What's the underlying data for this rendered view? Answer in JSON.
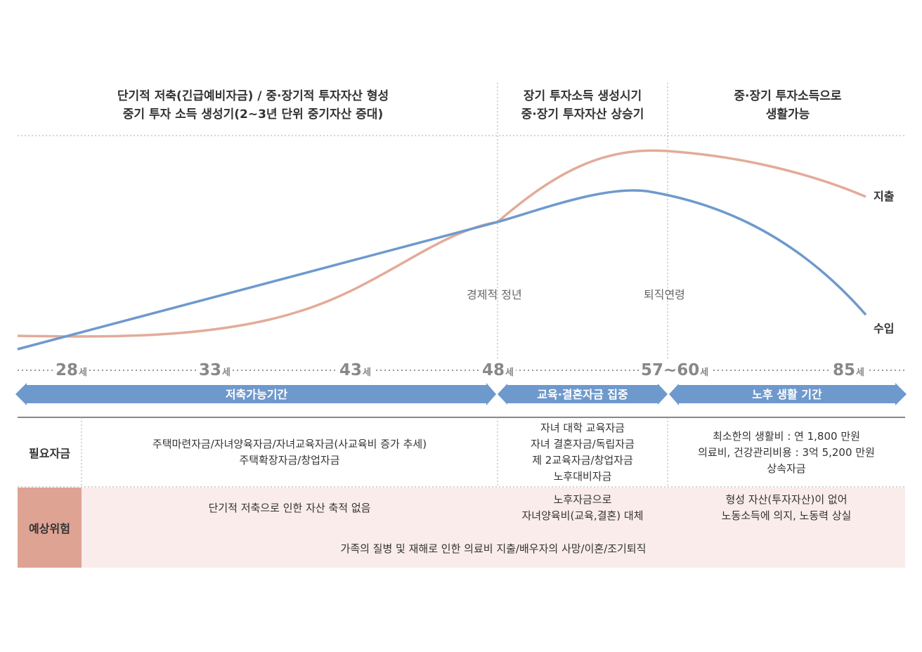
{
  "periods": [
    {
      "lines": [
        "단기적 저축(긴급예비자금) / 중·장기적 투자자산 형성",
        "중기 투자 소득 생성기(2~3년 단위 중기자산 증대)"
      ]
    },
    {
      "lines": [
        "장기 투자소득 생성시기",
        "중·장기 투자자산 상승기"
      ]
    },
    {
      "lines": [
        "중·장기 투자소득으로",
        "생활가능"
      ]
    }
  ],
  "milestones": {
    "economic_peak": "경제적 정년",
    "retirement": "퇴직연령"
  },
  "curves": {
    "expense": "지출",
    "income": "수입"
  },
  "colors": {
    "expense": "#e3ab98",
    "income": "#6e99cd",
    "band": "#6e99cd",
    "risk_head": "#dea393",
    "risk_bg": "#f9ecea"
  },
  "ages": [
    {
      "num": "28",
      "unit": "세"
    },
    {
      "num": "33",
      "unit": "세"
    },
    {
      "num": "43",
      "unit": "세"
    },
    {
      "num": "48",
      "unit": "세"
    },
    {
      "num": "57~60",
      "unit": "세"
    },
    {
      "num": "85",
      "unit": "세"
    }
  ],
  "bands": [
    "저축가능기간",
    "교육·결혼자금 집중",
    "노후 생활 기간"
  ],
  "table": {
    "required_header": "필요자금",
    "required": [
      [
        "주택마련자금/자녀양육자금/자녀교육자금(사교육비 증가 추세)",
        "주택확장자금/창업자금"
      ],
      [
        "자녀 대학 교육자금",
        "자녀 결혼자금/독립자금",
        "제 2교육자금/창업자금",
        "노후대비자금"
      ],
      [
        "최소한의 생활비 : 연 1,800 만원",
        "의료비, 건강관리비용 : 3억 5,200 만원",
        "상속자금"
      ]
    ],
    "risk_header": "예상위험",
    "risks": [
      [
        "단기적 저축으로 인한 자산 축적 없음"
      ],
      [
        "노후자금으로",
        "자녀양육비(교육,결혼) 대체"
      ],
      [
        "형성 자산(투자자산)이 없어",
        "노동소득에 의지, 노동력 상실"
      ]
    ],
    "risk_common": "가족의 질병 및 재해로 인한 의료비 지출/배우자의 사망/이혼/조기퇴직"
  }
}
